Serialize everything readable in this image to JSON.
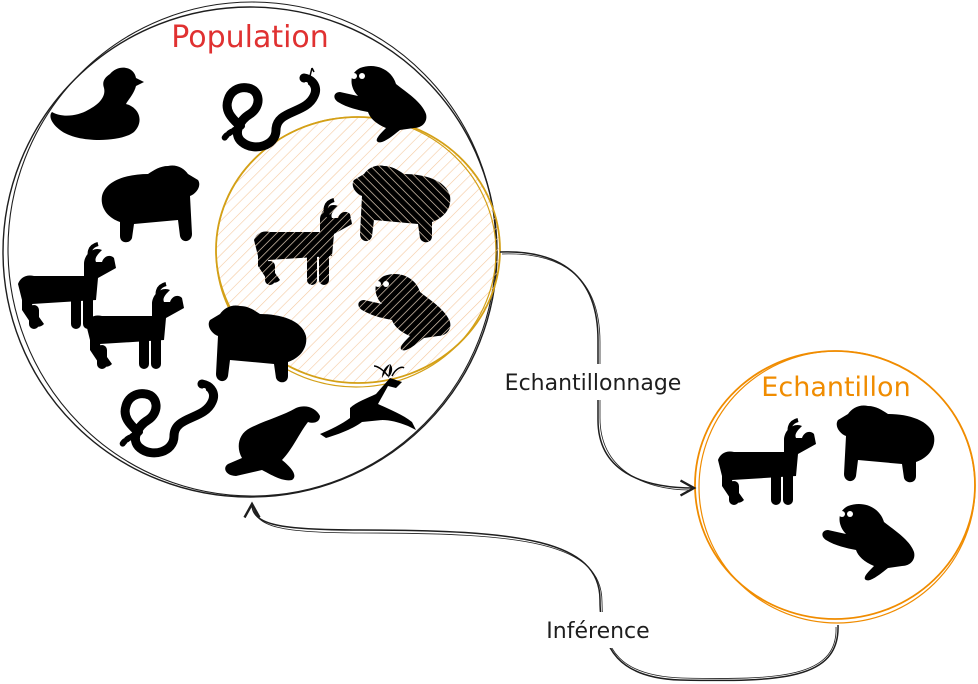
{
  "population": {
    "title": "Population",
    "title_color": "#e03131",
    "circle_color": "#1e1e1e"
  },
  "sample_region": {
    "stroke_color": "#d4a017",
    "fill_color": "#fde7cf"
  },
  "echantillon": {
    "title": "Echantillon",
    "color": "#f08c00"
  },
  "edges": {
    "sampling": {
      "label": "Echantillonnage"
    },
    "inference": {
      "label": "Inférence"
    }
  },
  "animal_color": "#000000"
}
